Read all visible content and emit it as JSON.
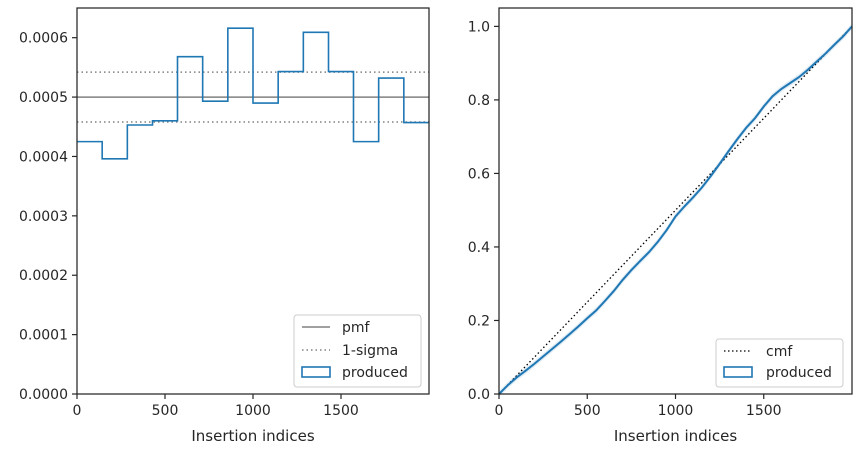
{
  "chart_data": [
    {
      "type": "step",
      "xlabel": "Insertion indices",
      "ylabel": "",
      "xlim": [
        0,
        2000
      ],
      "ylim": [
        0,
        0.00065
      ],
      "xticks": [
        0,
        500,
        1000,
        1500
      ],
      "yticks": [
        "0.0000",
        "0.0001",
        "0.0002",
        "0.0003",
        "0.0004",
        "0.0005",
        "0.0006"
      ],
      "ytick_values": [
        0,
        0.0001,
        0.0002,
        0.0003,
        0.0004,
        0.0005,
        0.0006
      ],
      "pmf": 0.0005,
      "sigma_band": [
        0.000458,
        0.000542
      ],
      "produced": {
        "bin_edges": [
          0,
          143,
          286,
          429,
          571,
          714,
          857,
          1000,
          1143,
          1286,
          1429,
          1571,
          1714,
          1857,
          2000
        ],
        "values": [
          0.000425,
          0.000396,
          0.000453,
          0.00046,
          0.000568,
          0.000493,
          0.000616,
          0.00049,
          0.000543,
          0.000609,
          0.000543,
          0.000425,
          0.000532,
          0.000457
        ]
      },
      "legend": {
        "position": "lower-right",
        "entries": [
          {
            "label": "pmf",
            "style": "solid",
            "color": "#808080"
          },
          {
            "label": "1-sigma",
            "style": "dotted",
            "color": "#808080"
          },
          {
            "label": "produced",
            "style": "box",
            "color": "#1f77b4"
          }
        ]
      }
    },
    {
      "type": "line",
      "xlabel": "Insertion indices",
      "ylabel": "",
      "xlim": [
        0,
        2000
      ],
      "ylim": [
        0,
        1.05
      ],
      "xticks": [
        0,
        500,
        1000,
        1500
      ],
      "yticks": [
        "0.0",
        "0.2",
        "0.4",
        "0.6",
        "0.8",
        "1.0"
      ],
      "ytick_values": [
        0,
        0.2,
        0.4,
        0.6,
        0.8,
        1.0
      ],
      "cmf": {
        "x": [
          0,
          2000
        ],
        "y": [
          0,
          1
        ]
      },
      "produced": {
        "x": [
          0,
          25,
          50,
          100,
          150,
          200,
          250,
          300,
          350,
          400,
          450,
          500,
          550,
          600,
          650,
          700,
          750,
          800,
          850,
          900,
          950,
          1000,
          1050,
          1100,
          1150,
          1200,
          1250,
          1300,
          1350,
          1400,
          1450,
          1500,
          1550,
          1600,
          1650,
          1700,
          1750,
          1800,
          1850,
          1900,
          1950,
          2000
        ],
        "y": [
          0,
          0.012,
          0.024,
          0.045,
          0.063,
          0.082,
          0.102,
          0.122,
          0.142,
          0.163,
          0.184,
          0.206,
          0.227,
          0.253,
          0.28,
          0.31,
          0.337,
          0.362,
          0.386,
          0.414,
          0.446,
          0.483,
          0.51,
          0.535,
          0.562,
          0.593,
          0.626,
          0.66,
          0.693,
          0.724,
          0.75,
          0.782,
          0.81,
          0.83,
          0.846,
          0.862,
          0.882,
          0.904,
          0.926,
          0.95,
          0.973,
          1.0
        ]
      },
      "legend": {
        "position": "lower-right",
        "entries": [
          {
            "label": "cmf",
            "style": "dotted",
            "color": "#000000"
          },
          {
            "label": "produced",
            "style": "box",
            "color": "#1f77b4"
          }
        ]
      }
    }
  ]
}
